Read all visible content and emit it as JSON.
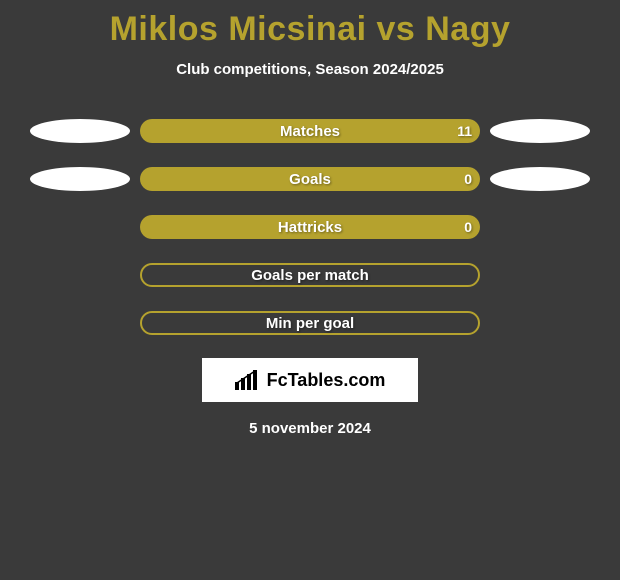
{
  "colors": {
    "page_bg": "#3a3a3a",
    "title": "#b5a22e",
    "subtitle": "#ffffff",
    "bar_bg": "#b5a22e",
    "bar_border": "#b5a22e",
    "bar_text": "#ffffff",
    "ellipse_left": "#ffffff",
    "ellipse_right": "#ffffff",
    "logo_bg": "#ffffff",
    "logo_text": "#000000",
    "date_text": "#ffffff"
  },
  "title": "Miklos Micsinai vs Nagy",
  "subtitle": "Club competitions, Season 2024/2025",
  "rows": [
    {
      "label": "Matches",
      "right_value": "11",
      "filled": true,
      "show_left_ellipse": true,
      "show_right_ellipse": true
    },
    {
      "label": "Goals",
      "right_value": "0",
      "filled": true,
      "show_left_ellipse": true,
      "show_right_ellipse": true
    },
    {
      "label": "Hattricks",
      "right_value": "0",
      "filled": true,
      "show_left_ellipse": false,
      "show_right_ellipse": false
    },
    {
      "label": "Goals per match",
      "right_value": "",
      "filled": false,
      "show_left_ellipse": false,
      "show_right_ellipse": false
    },
    {
      "label": "Min per goal",
      "right_value": "",
      "filled": false,
      "show_left_ellipse": false,
      "show_right_ellipse": false
    }
  ],
  "logo": {
    "text": "FcTables.com"
  },
  "date": "5 november 2024"
}
